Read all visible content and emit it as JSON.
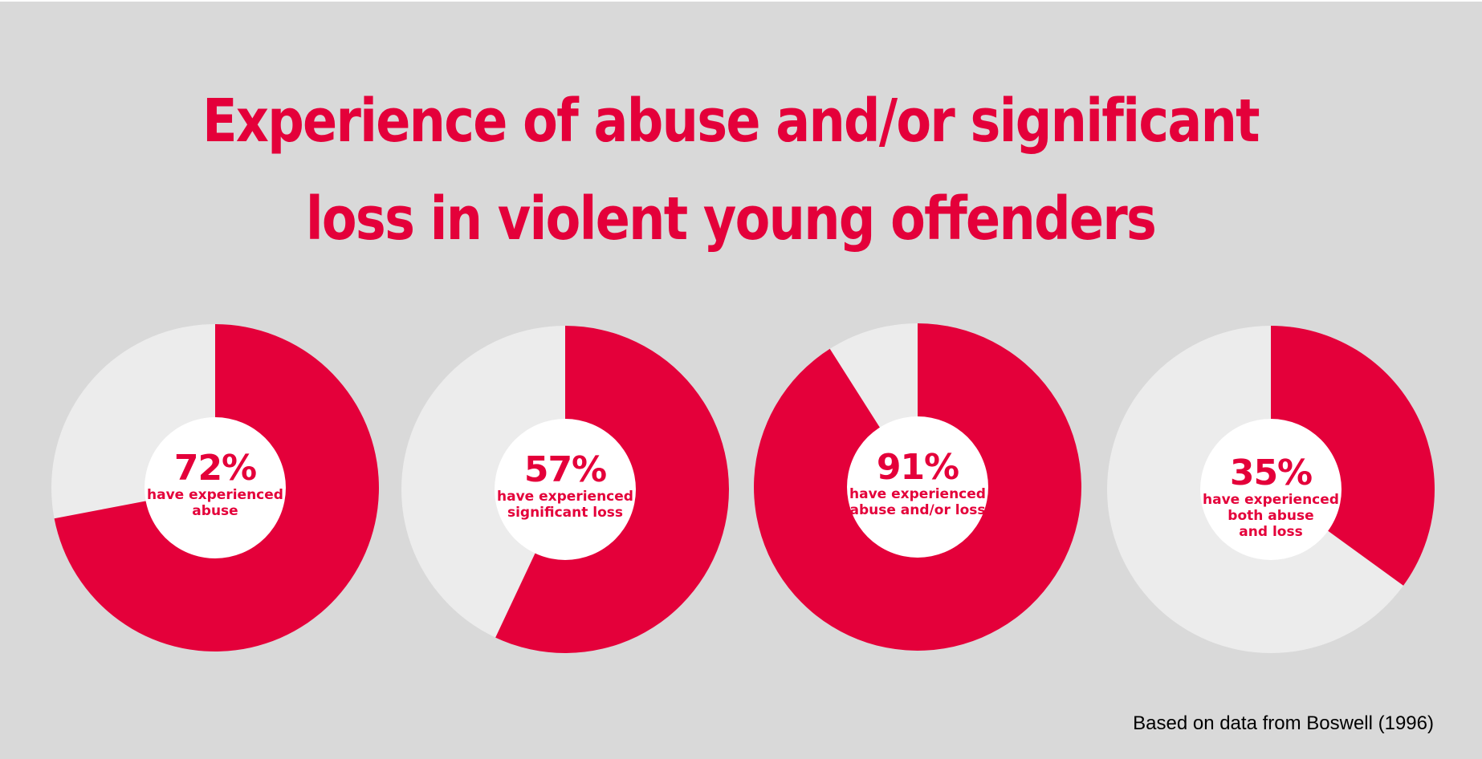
{
  "title_line1": "Experience of abuse and/or significant",
  "title_line2": "loss in violent young offenders",
  "source": "Based on data from Boswell (1996)",
  "colors": {
    "background": "#d9d9d9",
    "accent": "#e4003a",
    "remainder": "#ececec",
    "hole": "#ffffff"
  },
  "chart_data": {
    "type": "pie",
    "title": "Experience of abuse and/or significant loss in violent young offenders",
    "series": [
      {
        "value": 72,
        "label": "72%",
        "caption": [
          "have experienced",
          "abuse"
        ]
      },
      {
        "value": 57,
        "label": "57%",
        "caption": [
          "have experienced",
          "significant loss"
        ]
      },
      {
        "value": 91,
        "label": "91%",
        "caption": [
          "have experienced",
          "abuse and/or loss"
        ]
      },
      {
        "value": 35,
        "label": "35%",
        "caption": [
          "have experienced",
          "both abuse",
          "and loss"
        ]
      }
    ]
  }
}
